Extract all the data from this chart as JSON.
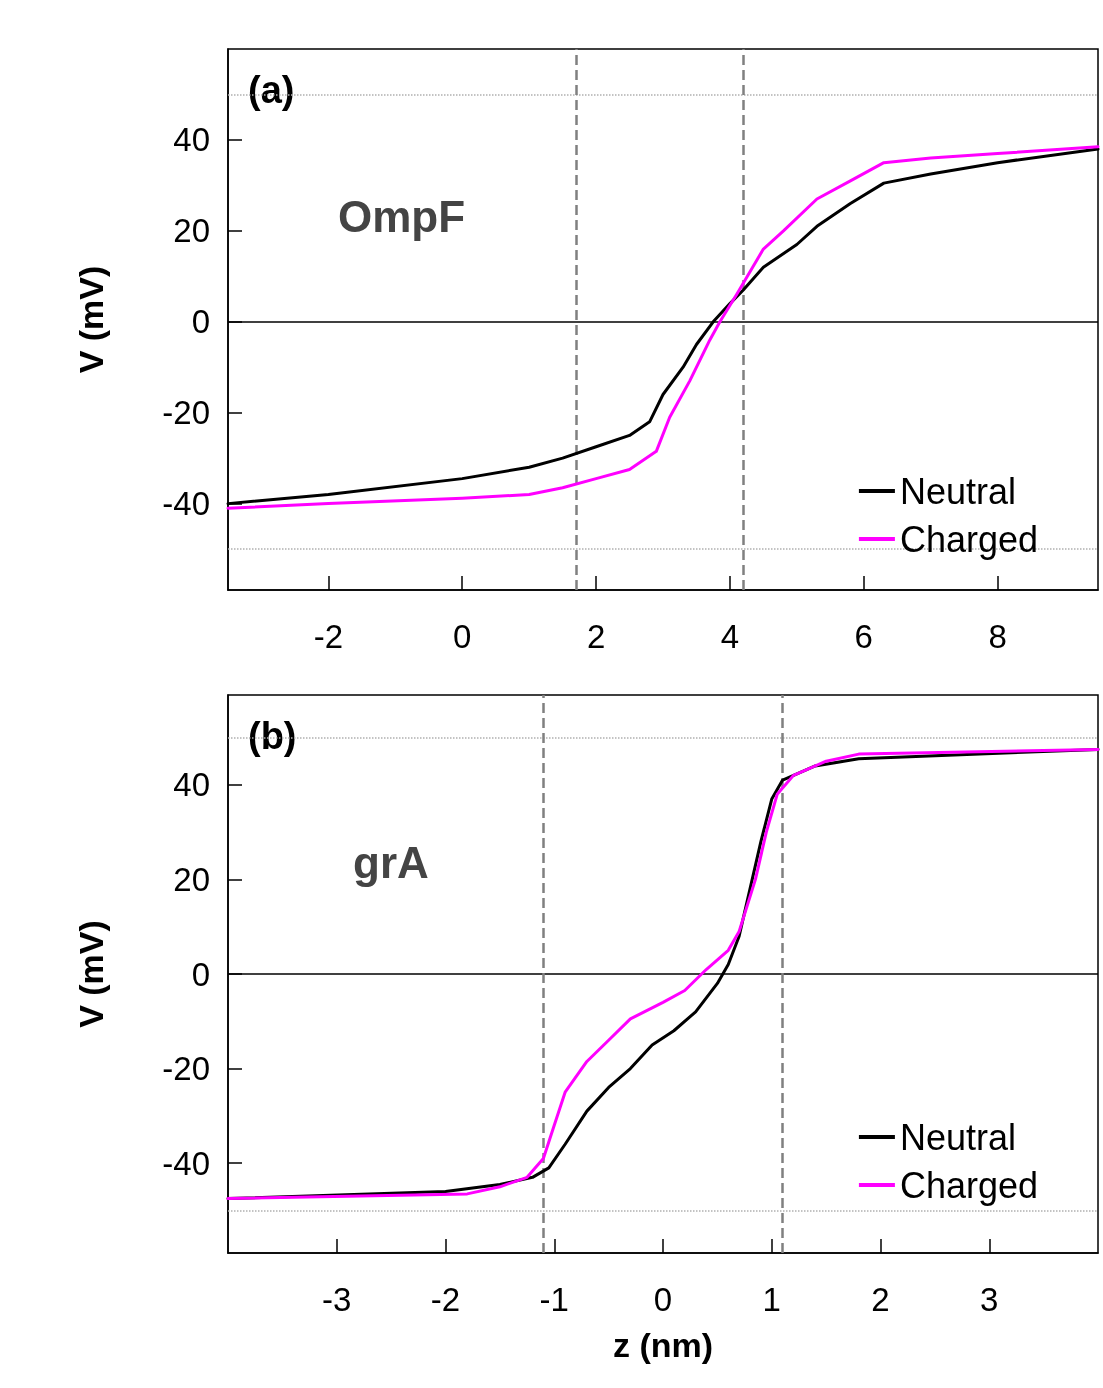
{
  "chart_data": [
    {
      "type": "line",
      "ylabel": "V (mV)",
      "annotations": [
        "(a)",
        "OmpF"
      ],
      "xlim": [
        -3.5,
        9.5
      ],
      "xticks": [
        -2,
        0,
        2,
        4,
        6,
        8
      ],
      "ylim": [
        -59,
        60
      ],
      "yticks": [
        -40,
        -20,
        0,
        20,
        40
      ],
      "grid": false,
      "legend": "bottom right",
      "marker": "none",
      "line_style": "solid",
      "ref_lines": [
        {
          "axis": "y",
          "value": 0,
          "color": "#000000",
          "line_style": "solid"
        },
        {
          "axis": "y",
          "value": 50,
          "color": "#b0b0b0",
          "line_style": "dotted"
        },
        {
          "axis": "y",
          "value": -50,
          "color": "#b0b0b0",
          "line_style": "dotted"
        },
        {
          "axis": "x",
          "value": 1.7,
          "color": "#808080",
          "line_style": "dashed"
        },
        {
          "axis": "x",
          "value": 4.2,
          "color": "#808080",
          "line_style": "dashed"
        }
      ],
      "series": [
        {
          "name": "Neutral",
          "color": "#000000",
          "x": [
            -3.5,
            -2,
            0,
            1,
            1.5,
            2,
            2.5,
            2.8,
            3,
            3.3,
            3.5,
            3.75,
            4,
            4.2,
            4.5,
            5,
            5.3,
            5.8,
            6.3,
            7,
            8,
            9.5
          ],
          "values": [
            -40,
            -38,
            -34.5,
            -32,
            -30,
            -27.5,
            -25,
            -22,
            -16,
            -10,
            -5,
            0,
            4,
            7,
            12,
            17,
            21,
            26,
            30.5,
            32.5,
            35,
            38
          ]
        },
        {
          "name": "Charged",
          "color": "#ff00ff",
          "x": [
            -3.5,
            -2,
            0,
            1,
            1.5,
            2,
            2.5,
            2.9,
            3.1,
            3.4,
            3.7,
            3.85,
            4.1,
            4.3,
            4.5,
            4.8,
            5.3,
            5.8,
            6.3,
            7,
            8,
            9.5
          ],
          "values": [
            -41,
            -40,
            -38.8,
            -38,
            -36.5,
            -34.5,
            -32.5,
            -28.5,
            -21,
            -13,
            -4,
            0,
            6,
            11,
            16,
            20,
            27,
            31,
            35,
            36,
            37,
            38.5
          ]
        }
      ]
    },
    {
      "type": "line",
      "xlabel": "z (nm)",
      "ylabel": "V (mV)",
      "annotations": [
        "(b)",
        "grA"
      ],
      "xlim": [
        -4,
        4
      ],
      "xticks": [
        -3,
        -2,
        -1,
        0,
        1,
        2,
        3
      ],
      "ylim": [
        -59,
        59
      ],
      "yticks": [
        -40,
        -20,
        0,
        20,
        40
      ],
      "grid": false,
      "legend": "bottom right",
      "marker": "none",
      "line_style": "solid",
      "ref_lines": [
        {
          "axis": "y",
          "value": 0,
          "color": "#000000",
          "line_style": "solid"
        },
        {
          "axis": "y",
          "value": 50,
          "color": "#b0b0b0",
          "line_style": "dotted"
        },
        {
          "axis": "y",
          "value": -50,
          "color": "#b0b0b0",
          "line_style": "dotted"
        },
        {
          "axis": "x",
          "value": -1.1,
          "color": "#808080",
          "line_style": "dashed"
        },
        {
          "axis": "x",
          "value": 1.1,
          "color": "#808080",
          "line_style": "dashed"
        }
      ],
      "series": [
        {
          "name": "Neutral",
          "color": "#000000",
          "x": [
            -4,
            -2,
            -1.5,
            -1.2,
            -1.05,
            -0.9,
            -0.7,
            -0.5,
            -0.3,
            -0.1,
            0.1,
            0.3,
            0.5,
            0.6,
            0.7,
            0.8,
            0.9,
            1.0,
            1.1,
            1.4,
            1.8,
            4
          ],
          "values": [
            -47.5,
            -46,
            -44.5,
            -43,
            -41,
            -36,
            -29,
            -24,
            -20,
            -15,
            -12,
            -8,
            -2,
            2,
            8,
            18,
            28,
            37,
            41,
            44,
            45.5,
            47.5
          ]
        },
        {
          "name": "Charged",
          "color": "#ff00ff",
          "x": [
            -4,
            -1.8,
            -1.5,
            -1.25,
            -1.1,
            -1,
            -0.9,
            -0.7,
            -0.5,
            -0.3,
            0,
            0.2,
            0.4,
            0.6,
            0.7,
            0.85,
            0.95,
            1.05,
            1.2,
            1.5,
            1.8,
            4
          ],
          "values": [
            -47.5,
            -46.5,
            -45,
            -43,
            -39,
            -32,
            -25,
            -18.5,
            -14,
            -9.5,
            -6,
            -3.5,
            1,
            5,
            9,
            20,
            30,
            38,
            42,
            45,
            46.5,
            47.5
          ]
        }
      ]
    }
  ]
}
